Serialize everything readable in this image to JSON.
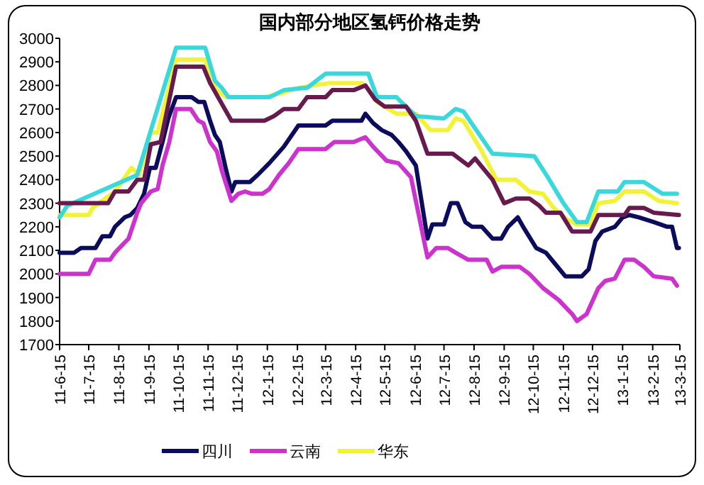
{
  "chart_data": {
    "type": "line",
    "title": "国内部分地区氢钙价格走势",
    "legend": "bottom",
    "xlim": [
      "2011-06-15",
      "2013-03-15"
    ],
    "ylim": [
      1700,
      3000
    ],
    "xticks": [
      {
        "value": "2011-06-15",
        "label": "11-6-15"
      },
      {
        "value": "2011-07-15",
        "label": "11-7-15"
      },
      {
        "value": "2011-08-15",
        "label": "11-8-15"
      },
      {
        "value": "2011-09-15",
        "label": "11-9-15"
      },
      {
        "value": "2011-10-15",
        "label": "11-10-15"
      },
      {
        "value": "2011-11-15",
        "label": "11-11-15"
      },
      {
        "value": "2011-12-15",
        "label": "11-12-15"
      },
      {
        "value": "2012-01-15",
        "label": "12-1-15"
      },
      {
        "value": "2012-02-15",
        "label": "12-2-15"
      },
      {
        "value": "2012-03-15",
        "label": "12-3-15"
      },
      {
        "value": "2012-04-15",
        "label": "12-4-15"
      },
      {
        "value": "2012-05-15",
        "label": "12-5-15"
      },
      {
        "value": "2012-06-15",
        "label": "12-6-15"
      },
      {
        "value": "2012-07-15",
        "label": "12-7-15"
      },
      {
        "value": "2012-08-15",
        "label": "12-8-15"
      },
      {
        "value": "2012-09-15",
        "label": "12-9-15"
      },
      {
        "value": "2012-10-15",
        "label": "12-10-15"
      },
      {
        "value": "2012-11-15",
        "label": "12-11-15"
      },
      {
        "value": "2012-12-15",
        "label": "12-12-15"
      },
      {
        "value": "2013-01-15",
        "label": "13-1-15"
      },
      {
        "value": "2013-02-15",
        "label": "13-2-15"
      },
      {
        "value": "2013-03-15",
        "label": "13-3-15"
      }
    ],
    "yticks": [
      1700,
      1800,
      1900,
      2000,
      2100,
      2200,
      2300,
      2400,
      2500,
      2600,
      2700,
      2800,
      2900,
      3000
    ],
    "series": [
      {
        "name": "四川",
        "color": "#0c0c5c",
        "x": [
          "2011-06-15",
          "2011-06-30",
          "2011-07-07",
          "2011-07-22",
          "2011-07-29",
          "2011-08-06",
          "2011-08-11",
          "2011-08-21",
          "2011-08-27",
          "2011-09-03",
          "2011-09-10",
          "2011-09-16",
          "2011-09-22",
          "2011-09-29",
          "2011-10-05",
          "2011-10-13",
          "2011-10-29",
          "2011-11-05",
          "2011-11-11",
          "2011-11-17",
          "2011-11-22",
          "2011-11-27",
          "2011-12-03",
          "2011-12-09",
          "2011-12-13",
          "2011-12-28",
          "2012-01-05",
          "2012-01-17",
          "2012-02-01",
          "2012-02-16",
          "2012-03-15",
          "2012-03-22",
          "2012-04-21",
          "2012-04-25",
          "2012-05-03",
          "2012-05-12",
          "2012-05-22",
          "2012-05-29",
          "2012-06-06",
          "2012-06-16",
          "2012-06-28",
          "2012-07-03",
          "2012-07-15",
          "2012-07-22",
          "2012-07-29",
          "2012-08-06",
          "2012-08-13",
          "2012-08-23",
          "2012-09-03",
          "2012-09-12",
          "2012-09-19",
          "2012-09-29",
          "2012-10-06",
          "2012-10-18",
          "2012-10-28",
          "2012-11-07",
          "2012-11-17",
          "2012-12-04",
          "2012-12-11",
          "2012-12-18",
          "2012-12-25",
          "2013-01-07",
          "2013-01-15",
          "2013-01-22",
          "2013-02-01",
          "2013-02-16",
          "2013-03-02",
          "2013-03-07",
          "2013-03-12",
          "2013-03-14"
        ],
        "values": [
          2090,
          2090,
          2110,
          2110,
          2160,
          2160,
          2200,
          2240,
          2250,
          2280,
          2340,
          2450,
          2450,
          2560,
          2660,
          2750,
          2750,
          2730,
          2730,
          2650,
          2590,
          2560,
          2450,
          2350,
          2390,
          2390,
          2420,
          2470,
          2540,
          2630,
          2630,
          2650,
          2650,
          2680,
          2640,
          2610,
          2590,
          2560,
          2520,
          2460,
          2150,
          2210,
          2210,
          2300,
          2300,
          2220,
          2200,
          2200,
          2150,
          2150,
          2200,
          2240,
          2190,
          2110,
          2090,
          2040,
          1990,
          1990,
          2020,
          2140,
          2180,
          2200,
          2240,
          2250,
          2240,
          2220,
          2200,
          2200,
          2110,
          2110
        ]
      },
      {
        "name": "云南",
        "color": "#cc33cc",
        "x": [
          "2011-06-15",
          "2011-07-15",
          "2011-07-22",
          "2011-08-06",
          "2011-08-11",
          "2011-08-18",
          "2011-08-25",
          "2011-09-03",
          "2011-09-07",
          "2011-09-17",
          "2011-09-24",
          "2011-09-29",
          "2011-10-06",
          "2011-10-13",
          "2011-10-28",
          "2011-11-05",
          "2011-11-10",
          "2011-11-17",
          "2011-11-24",
          "2011-11-29",
          "2011-12-09",
          "2011-12-16",
          "2011-12-23",
          "2011-12-30",
          "2012-01-10",
          "2012-01-17",
          "2012-01-27",
          "2012-02-06",
          "2012-02-16",
          "2012-03-15",
          "2012-03-24",
          "2012-04-13",
          "2012-04-25",
          "2012-05-03",
          "2012-05-17",
          "2012-05-29",
          "2012-06-11",
          "2012-06-28",
          "2012-07-07",
          "2012-07-19",
          "2012-07-27",
          "2012-08-09",
          "2012-08-28",
          "2012-09-03",
          "2012-09-12",
          "2012-10-01",
          "2012-10-11",
          "2012-10-25",
          "2012-11-10",
          "2012-11-24",
          "2012-11-29",
          "2012-12-09",
          "2012-12-21",
          "2012-12-28",
          "2013-01-07",
          "2013-01-17",
          "2013-01-27",
          "2013-02-06",
          "2013-02-16",
          "2013-03-07",
          "2013-03-12"
        ],
        "values": [
          2000,
          2000,
          2060,
          2060,
          2090,
          2120,
          2150,
          2260,
          2300,
          2350,
          2360,
          2460,
          2560,
          2700,
          2700,
          2650,
          2640,
          2560,
          2520,
          2440,
          2310,
          2340,
          2350,
          2340,
          2340,
          2360,
          2420,
          2470,
          2530,
          2530,
          2560,
          2560,
          2580,
          2540,
          2480,
          2470,
          2410,
          2070,
          2110,
          2110,
          2090,
          2060,
          2060,
          2010,
          2030,
          2030,
          2000,
          1940,
          1890,
          1830,
          1800,
          1830,
          1940,
          1970,
          1980,
          2060,
          2060,
          2030,
          1990,
          1980,
          1950
        ]
      },
      {
        "name": "华东",
        "color": "#f2f236",
        "x": [
          "2011-06-15",
          "2011-07-15",
          "2011-07-19",
          "2011-08-11",
          "2011-08-28",
          "2011-09-05",
          "2011-09-17",
          "2011-09-24",
          "2011-09-29",
          "2011-10-13",
          "2011-11-12",
          "2011-11-17",
          "2011-11-24",
          "2011-12-04",
          "2012-01-12",
          "2012-02-01",
          "2012-02-16",
          "2012-03-19",
          "2012-04-21",
          "2012-04-25",
          "2012-05-07",
          "2012-05-27",
          "2012-06-16",
          "2012-07-01",
          "2012-07-19",
          "2012-07-27",
          "2012-08-04",
          "2012-08-23",
          "2012-09-07",
          "2012-09-27",
          "2012-10-11",
          "2012-10-25",
          "2012-11-05",
          "2012-11-19",
          "2012-11-29",
          "2012-12-13",
          "2012-12-21",
          "2013-01-07",
          "2013-01-17",
          "2013-02-06",
          "2013-02-21",
          "2013-03-12"
        ],
        "values": [
          2250,
          2250,
          2280,
          2350,
          2450,
          2420,
          2600,
          2600,
          2680,
          2910,
          2910,
          2820,
          2780,
          2750,
          2750,
          2770,
          2790,
          2810,
          2810,
          2800,
          2730,
          2680,
          2680,
          2610,
          2610,
          2660,
          2650,
          2520,
          2400,
          2400,
          2350,
          2340,
          2280,
          2230,
          2210,
          2210,
          2300,
          2310,
          2350,
          2350,
          2310,
          2300
        ]
      },
      {
        "color": "#3ad8dc",
        "x": [
          "2011-06-15",
          "2011-06-23",
          "2011-09-03",
          "2011-10-13",
          "2011-11-12",
          "2011-11-22",
          "2011-11-29",
          "2011-12-06",
          "2012-01-17",
          "2012-02-01",
          "2012-02-25",
          "2012-03-15",
          "2012-04-28",
          "2012-05-07",
          "2012-05-27",
          "2012-06-16",
          "2012-07-15",
          "2012-07-27",
          "2012-08-04",
          "2012-09-03",
          "2012-10-16",
          "2012-10-30",
          "2012-11-15",
          "2012-11-29",
          "2012-12-09",
          "2012-12-21",
          "2013-01-10",
          "2013-01-17",
          "2013-02-06",
          "2013-02-25",
          "2013-03-12"
        ],
        "values": [
          2240,
          2290,
          2420,
          2960,
          2960,
          2820,
          2790,
          2750,
          2750,
          2780,
          2790,
          2850,
          2850,
          2750,
          2750,
          2670,
          2660,
          2700,
          2690,
          2510,
          2500,
          2410,
          2300,
          2220,
          2220,
          2350,
          2350,
          2390,
          2390,
          2340,
          2340
        ]
      },
      {
        "color": "#661a4d",
        "x": [
          "2011-06-15",
          "2011-08-04",
          "2011-08-11",
          "2011-08-25",
          "2011-09-03",
          "2011-09-10",
          "2011-09-17",
          "2011-09-27",
          "2011-10-13",
          "2011-11-10",
          "2011-11-17",
          "2011-12-09",
          "2012-01-12",
          "2012-01-22",
          "2012-02-01",
          "2012-02-16",
          "2012-02-25",
          "2012-03-15",
          "2012-03-22",
          "2012-04-13",
          "2012-04-25",
          "2012-05-05",
          "2012-05-15",
          "2012-06-06",
          "2012-06-16",
          "2012-06-28",
          "2012-07-24",
          "2012-08-09",
          "2012-08-16",
          "2012-09-03",
          "2012-09-15",
          "2012-09-27",
          "2012-10-11",
          "2012-10-21",
          "2012-10-28",
          "2012-11-12",
          "2012-11-24",
          "2012-12-13",
          "2012-12-21",
          "2013-01-17",
          "2013-01-22",
          "2013-02-06",
          "2013-02-16",
          "2013-03-14"
        ],
        "values": [
          2300,
          2300,
          2350,
          2350,
          2400,
          2400,
          2550,
          2560,
          2880,
          2880,
          2810,
          2650,
          2650,
          2670,
          2700,
          2700,
          2750,
          2750,
          2780,
          2780,
          2800,
          2740,
          2710,
          2710,
          2650,
          2510,
          2510,
          2460,
          2490,
          2400,
          2300,
          2320,
          2320,
          2290,
          2260,
          2260,
          2180,
          2180,
          2250,
          2250,
          2280,
          2280,
          2260,
          2250
        ]
      }
    ]
  }
}
